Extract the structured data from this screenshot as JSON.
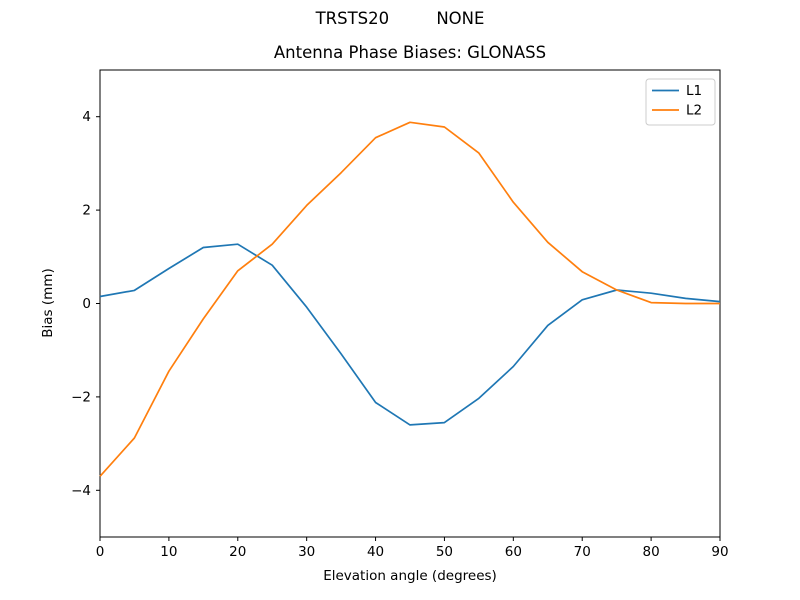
{
  "figure": {
    "suptitle": "TRSTS20         NONE",
    "background_color": "#ffffff",
    "axis_color": "#000000"
  },
  "chart_data": {
    "type": "line",
    "title": "Antenna Phase Biases: GLONASS",
    "xlabel": "Elevation angle (degrees)",
    "ylabel": "Bias (mm)",
    "xlim": [
      0,
      90
    ],
    "ylim": [
      -5,
      5
    ],
    "xticks": [
      0,
      10,
      20,
      30,
      40,
      50,
      60,
      70,
      80,
      90
    ],
    "yticks": [
      -4,
      -2,
      0,
      2,
      4
    ],
    "grid": false,
    "legend": {
      "position": "upper right",
      "border_color": "#cccccc",
      "background_color": "#ffffff"
    },
    "x": [
      0,
      5,
      10,
      15,
      20,
      25,
      30,
      35,
      40,
      45,
      50,
      55,
      60,
      65,
      70,
      75,
      80,
      85,
      90
    ],
    "series": [
      {
        "name": "L1",
        "color": "#1f77b4",
        "values": [
          0.15,
          0.28,
          0.75,
          1.2,
          1.27,
          0.82,
          -0.08,
          -1.08,
          -2.12,
          -2.6,
          -2.55,
          -2.03,
          -1.35,
          -0.47,
          0.08,
          0.29,
          0.22,
          0.11,
          0.04
        ]
      },
      {
        "name": "L2",
        "color": "#ff7f0e",
        "values": [
          -3.7,
          -2.88,
          -1.45,
          -0.33,
          0.7,
          1.27,
          2.1,
          2.8,
          3.55,
          3.88,
          3.78,
          3.22,
          2.17,
          1.31,
          0.68,
          0.29,
          0.02,
          0.0,
          0.0
        ]
      }
    ]
  }
}
